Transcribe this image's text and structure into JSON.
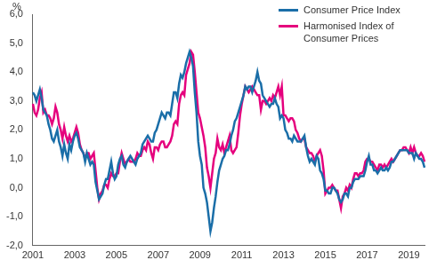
{
  "chart_data": {
    "type": "line",
    "ylabel": "%",
    "categories": [
      "2001",
      null,
      null,
      null,
      null,
      null,
      null,
      null,
      null,
      null,
      null,
      null,
      null,
      null,
      null,
      null,
      null,
      null,
      null,
      null,
      null,
      null,
      null,
      null,
      "2003",
      null,
      null,
      null,
      null,
      null,
      null,
      null,
      null,
      null,
      null,
      null,
      null,
      null,
      null,
      null,
      null,
      null,
      null,
      null,
      null,
      null,
      null,
      null,
      "2005",
      null,
      null,
      null,
      null,
      null,
      null,
      null,
      null,
      null,
      null,
      null,
      null,
      null,
      null,
      null,
      null,
      null,
      null,
      null,
      null,
      null,
      null,
      null,
      "2007",
      null,
      null,
      null,
      null,
      null,
      null,
      null,
      null,
      null,
      null,
      null,
      null,
      null,
      null,
      null,
      null,
      null,
      null,
      null,
      null,
      null,
      null,
      null,
      "2009",
      null,
      null,
      null,
      null,
      null,
      null,
      null,
      null,
      null,
      null,
      null,
      null,
      null,
      null,
      null,
      null,
      null,
      null,
      null,
      null,
      null,
      null,
      null,
      "2011",
      null,
      null,
      null,
      null,
      null,
      null,
      null,
      null,
      null,
      null,
      null,
      null,
      null,
      null,
      null,
      null,
      null,
      null,
      null,
      null,
      null,
      null,
      null,
      "2013",
      null,
      null,
      null,
      null,
      null,
      null,
      null,
      null,
      null,
      null,
      null,
      null,
      null,
      null,
      null,
      null,
      null,
      null,
      null,
      null,
      null,
      null,
      null,
      "2015",
      null,
      null,
      null,
      null,
      null,
      null,
      null,
      null,
      null,
      null,
      null,
      null,
      null,
      null,
      null,
      null,
      null,
      null,
      null,
      null,
      null,
      null,
      null,
      "2017",
      null,
      null,
      null,
      null,
      null,
      null,
      null,
      null,
      null,
      null,
      null,
      null,
      null,
      null,
      null,
      null,
      null,
      null,
      null,
      null,
      null,
      null,
      null,
      "2019",
      null,
      null,
      null,
      null,
      null,
      null,
      null,
      null,
      null
    ],
    "series": [
      {
        "name": "Consumer Price Index",
        "color": "#1a6ea8",
        "values": [
          3.3,
          3.2,
          3.0,
          3.2,
          3.4,
          3.1,
          2.7,
          2.6,
          2.5,
          2.2,
          2.0,
          1.7,
          1.6,
          1.8,
          2.0,
          1.6,
          1.4,
          1.1,
          1.5,
          1.2,
          1.0,
          1.5,
          1.3,
          1.6,
          1.8,
          1.9,
          1.7,
          1.4,
          1.3,
          1.2,
          0.9,
          1.2,
          1.0,
          0.8,
          0.9,
          0.8,
          0.2,
          -0.1,
          -0.4,
          -0.3,
          -0.2,
          0.1,
          0.3,
          0.3,
          0.6,
          0.9,
          0.5,
          0.3,
          0.4,
          0.8,
          1.0,
          1.1,
          0.8,
          0.7,
          0.9,
          1.0,
          1.1,
          1.0,
          0.9,
          0.8,
          1.0,
          1.1,
          1.2,
          1.5,
          1.6,
          1.7,
          1.8,
          1.7,
          1.6,
          1.6,
          1.9,
          2.0,
          2.2,
          2.4,
          2.6,
          2.5,
          2.4,
          2.6,
          2.6,
          2.5,
          2.9,
          3.3,
          3.3,
          3.1,
          3.6,
          3.9,
          3.8,
          4.0,
          4.3,
          4.5,
          4.7,
          4.5,
          4.2,
          3.3,
          2.6,
          1.6,
          1.1,
          0.8,
          0.0,
          -0.2,
          -0.5,
          -1.0,
          -1.5,
          -1.2,
          -0.7,
          -0.3,
          0.2,
          0.6,
          0.8,
          1.0,
          1.1,
          1.3,
          1.3,
          1.5,
          1.8,
          2.0,
          2.3,
          2.4,
          2.6,
          2.8,
          3.0,
          3.2,
          3.5,
          3.4,
          3.5,
          3.5,
          3.3,
          3.5,
          3.7,
          4.0,
          3.7,
          3.6,
          3.2,
          3.1,
          3.0,
          2.9,
          2.8,
          2.9,
          2.9,
          3.1,
          2.9,
          2.8,
          2.4,
          2.5,
          2.4,
          2.0,
          1.9,
          1.7,
          1.7,
          1.6,
          1.8,
          1.7,
          1.6,
          1.6,
          1.6,
          1.7,
          1.8,
          1.4,
          1.1,
          0.9,
          1.0,
          0.9,
          0.8,
          1.1,
          1.0,
          0.6,
          0.5,
          0.3,
          -0.1,
          -0.1,
          -0.2,
          -0.2,
          0.0,
          0.0,
          -0.1,
          -0.2,
          -0.4,
          -0.5,
          -0.4,
          -0.2,
          -0.2,
          -0.3,
          0.0,
          0.0,
          0.2,
          0.3,
          0.3,
          0.3,
          0.4,
          0.4,
          0.4,
          0.6,
          0.9,
          1.1,
          0.8,
          0.8,
          0.6,
          0.6,
          0.5,
          0.6,
          0.7,
          0.6,
          0.6,
          0.7,
          0.6,
          0.7,
          0.9,
          0.9,
          1.0,
          1.1,
          1.2,
          1.3,
          1.3,
          1.3,
          1.3,
          1.3,
          1.2,
          1.2,
          1.2,
          1.0,
          1.2,
          1.1,
          1.0,
          1.0,
          0.9,
          0.7
        ]
      },
      {
        "name": "Harmonised Index of Consumer Prices",
        "color": "#e5007d",
        "values": [
          2.9,
          2.6,
          2.5,
          2.7,
          3.1,
          3.3,
          2.6,
          2.7,
          2.5,
          2.5,
          2.4,
          2.2,
          2.4,
          2.8,
          2.6,
          2.2,
          2.0,
          1.7,
          2.1,
          1.8,
          1.6,
          1.8,
          1.6,
          1.7,
          1.9,
          2.1,
          1.9,
          1.5,
          1.3,
          1.2,
          1.0,
          1.2,
          1.2,
          1.0,
          1.1,
          1.2,
          0.6,
          0.0,
          -0.4,
          -0.2,
          -0.1,
          0.1,
          0.1,
          0.0,
          0.3,
          0.5,
          0.4,
          0.4,
          0.5,
          0.5,
          0.9,
          1.2,
          1.0,
          0.8,
          0.9,
          1.0,
          0.9,
          0.9,
          0.9,
          1.0,
          1.2,
          1.1,
          1.1,
          1.3,
          1.4,
          1.3,
          1.6,
          1.5,
          1.2,
          1.0,
          1.4,
          1.4,
          1.3,
          1.5,
          1.6,
          1.6,
          1.4,
          1.4,
          1.5,
          1.6,
          1.8,
          2.2,
          2.3,
          2.2,
          2.9,
          3.2,
          3.3,
          3.2,
          3.9,
          4.1,
          4.3,
          4.7,
          4.6,
          4.0,
          3.3,
          2.6,
          2.4,
          2.1,
          1.8,
          1.4,
          0.7,
          0.4,
          0.0,
          0.5,
          1.0,
          1.2,
          1.7,
          1.4,
          1.3,
          1.5,
          1.2,
          1.4,
          1.6,
          1.8,
          1.3,
          1.2,
          1.3,
          1.4,
          1.9,
          2.5,
          2.9,
          3.2,
          3.5,
          3.4,
          3.3,
          3.4,
          3.5,
          3.4,
          3.3,
          3.2,
          3.2,
          2.7,
          3.0,
          3.0,
          2.9,
          3.0,
          3.1,
          3.0,
          3.2,
          3.1,
          3.3,
          3.5,
          3.2,
          3.5,
          2.5,
          2.5,
          2.4,
          2.3,
          2.4,
          2.4,
          2.3,
          2.0,
          1.9,
          1.7,
          1.6,
          1.7,
          1.7,
          1.4,
          1.3,
          1.2,
          1.2,
          1.1,
          0.9,
          1.1,
          1.2,
          1.3,
          1.1,
          0.6,
          -0.2,
          -0.1,
          0.0,
          0.0,
          0.1,
          0.0,
          -0.1,
          -0.1,
          -0.4,
          -0.7,
          -0.3,
          -0.2,
          0.0,
          -0.1,
          0.1,
          0.0,
          0.3,
          0.5,
          0.5,
          0.4,
          0.5,
          0.5,
          0.6,
          0.9,
          1.0,
          1.0,
          0.9,
          0.9,
          0.8,
          0.7,
          0.6,
          0.8,
          0.8,
          0.7,
          0.8,
          0.7,
          0.8,
          0.9,
          1.0,
          0.9,
          1.0,
          1.1,
          1.2,
          1.3,
          1.3,
          1.4,
          1.4,
          1.3,
          1.2,
          1.4,
          1.2,
          1.4,
          1.2,
          1.1,
          1.1,
          1.2,
          1.1,
          0.9
        ]
      }
    ],
    "ylim": [
      -2,
      6
    ],
    "yticks": [
      {
        "value": -2,
        "label": "-2,0"
      },
      {
        "value": -1,
        "label": "-1,0"
      },
      {
        "value": 0,
        "label": "0,0"
      },
      {
        "value": 1,
        "label": "1,0"
      },
      {
        "value": 2,
        "label": "2,0"
      },
      {
        "value": 3,
        "label": "3,0"
      },
      {
        "value": 4,
        "label": "4,0"
      },
      {
        "value": 5,
        "label": "5,0"
      },
      {
        "value": 6,
        "label": "6,0"
      }
    ],
    "grid": false,
    "legend": "upper right"
  }
}
